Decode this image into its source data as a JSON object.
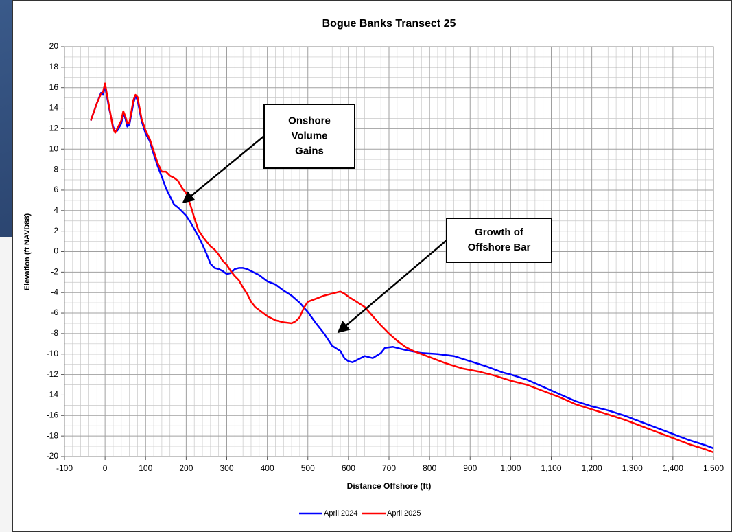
{
  "chart_data": {
    "type": "line",
    "title": "Bogue Banks Transect 25",
    "x_label": "Distance Offshore (ft)",
    "y_label": "Elevation (ft NAVD88)",
    "xlim": [
      -100,
      1500
    ],
    "ylim": [
      -20,
      20
    ],
    "grid": true,
    "legend": "bottom",
    "xticks": [
      -100,
      0,
      100,
      200,
      300,
      400,
      500,
      600,
      700,
      800,
      900,
      {
        "value": 1000,
        "label": "1,000"
      },
      {
        "value": 1100,
        "label": "1,100"
      },
      {
        "value": 1200,
        "label": "1,200"
      },
      {
        "value": 1300,
        "label": "1,300"
      },
      {
        "value": 1400,
        "label": "1,400"
      },
      {
        "value": 1500,
        "label": "1,500"
      }
    ],
    "yticks": [
      -20,
      -18,
      -16,
      -14,
      -12,
      -10,
      -8,
      -6,
      -4,
      -2,
      0,
      2,
      4,
      6,
      8,
      10,
      12,
      14,
      16,
      18,
      20
    ],
    "series": [
      {
        "name": "April 2024",
        "color": "#0000ff",
        "x": [
          -35,
          -20,
          -10,
          -5,
          0,
          10,
          20,
          25,
          30,
          40,
          45,
          50,
          55,
          60,
          70,
          75,
          80,
          90,
          100,
          110,
          120,
          130,
          140,
          150,
          160,
          170,
          180,
          190,
          200,
          210,
          220,
          230,
          240,
          250,
          260,
          270,
          280,
          290,
          300,
          310,
          320,
          330,
          340,
          350,
          360,
          380,
          400,
          420,
          440,
          460,
          480,
          500,
          520,
          540,
          560,
          580,
          590,
          600,
          610,
          620,
          640,
          660,
          680,
          690,
          710,
          740,
          780,
          820,
          860,
          900,
          940,
          980,
          1000,
          1040,
          1080,
          1120,
          1160,
          1200,
          1240,
          1280,
          1320,
          1360,
          1400,
          1440,
          1480,
          1500
        ],
        "values": [
          12.8,
          14.5,
          15.5,
          15.3,
          16.2,
          14,
          12.2,
          11.7,
          11.8,
          12.5,
          13.5,
          13,
          12.2,
          12.4,
          14.5,
          15.2,
          14.8,
          12.8,
          11.5,
          10.8,
          9.5,
          8.3,
          7.3,
          6.2,
          5.4,
          4.6,
          4.3,
          3.9,
          3.5,
          2.9,
          2.2,
          1.5,
          0.7,
          -0.2,
          -1.2,
          -1.6,
          -1.7,
          -1.9,
          -2.2,
          -2.1,
          -1.7,
          -1.6,
          -1.6,
          -1.7,
          -1.9,
          -2.3,
          -2.9,
          -3.2,
          -3.8,
          -4.3,
          -5.0,
          -5.9,
          -7.0,
          -8.0,
          -9.2,
          -9.7,
          -10.4,
          -10.7,
          -10.8,
          -10.6,
          -10.2,
          -10.4,
          -9.9,
          -9.4,
          -9.3,
          -9.6,
          -9.9,
          -10.0,
          -10.2,
          -10.7,
          -11.2,
          -11.8,
          -12.0,
          -12.5,
          -13.2,
          -13.9,
          -14.6,
          -15.1,
          -15.5,
          -16.0,
          -16.6,
          -17.2,
          -17.8,
          -18.4,
          -18.9,
          -19.2
        ]
      },
      {
        "name": "April 2025",
        "color": "#ff0000",
        "x": [
          -35,
          -20,
          -10,
          -5,
          0,
          10,
          20,
          25,
          30,
          40,
          45,
          50,
          55,
          60,
          70,
          75,
          80,
          90,
          100,
          110,
          120,
          130,
          140,
          150,
          160,
          170,
          180,
          190,
          200,
          210,
          220,
          230,
          240,
          250,
          260,
          270,
          280,
          290,
          300,
          310,
          320,
          330,
          340,
          350,
          360,
          370,
          380,
          400,
          420,
          440,
          460,
          470,
          480,
          490,
          500,
          520,
          540,
          560,
          580,
          590,
          600,
          620,
          640,
          660,
          680,
          700,
          720,
          740,
          760,
          800,
          840,
          880,
          920,
          960,
          1000,
          1040,
          1080,
          1120,
          1160,
          1200,
          1240,
          1280,
          1320,
          1360,
          1400,
          1440,
          1480,
          1500
        ],
        "values": [
          12.8,
          14.5,
          15.4,
          15.6,
          16.4,
          14.2,
          12.0,
          11.6,
          12.0,
          12.8,
          13.7,
          13.2,
          12.5,
          12.6,
          14.8,
          15.3,
          15.1,
          13,
          11.8,
          11.0,
          9.8,
          8.6,
          7.8,
          7.8,
          7.4,
          7.2,
          6.9,
          6.2,
          5.7,
          4.6,
          3.3,
          2.1,
          1.5,
          1.0,
          0.5,
          0.2,
          -0.3,
          -0.9,
          -1.3,
          -1.9,
          -2.4,
          -2.8,
          -3.5,
          -4.1,
          -4.9,
          -5.4,
          -5.7,
          -6.3,
          -6.7,
          -6.9,
          -7.0,
          -6.8,
          -6.4,
          -5.5,
          -4.9,
          -4.6,
          -4.3,
          -4.1,
          -3.9,
          -4.1,
          -4.4,
          -4.9,
          -5.4,
          -6.3,
          -7.2,
          -8.0,
          -8.7,
          -9.3,
          -9.7,
          -10.3,
          -10.9,
          -11.4,
          -11.7,
          -12.1,
          -12.6,
          -13.0,
          -13.6,
          -14.2,
          -14.9,
          -15.4,
          -15.9,
          -16.4,
          -17.0,
          -17.6,
          -18.2,
          -18.8,
          -19.3,
          -19.6
        ]
      }
    ],
    "annotations": [
      {
        "lines": [
          "Onshore",
          "Volume",
          "Gains"
        ]
      },
      {
        "lines": [
          "Growth of",
          "Offshore Bar"
        ]
      }
    ]
  }
}
